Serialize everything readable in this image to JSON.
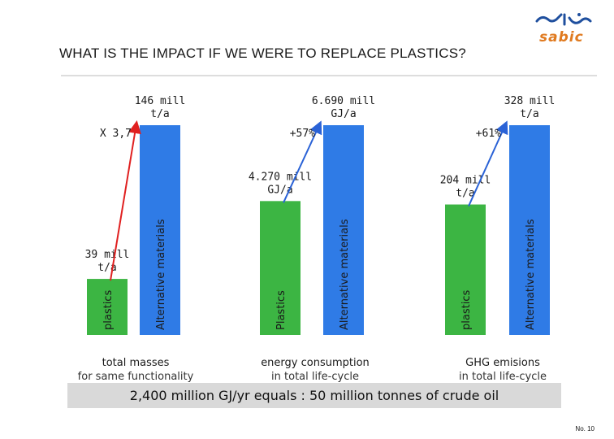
{
  "header": {
    "title": "WHAT IS THE IMPACT IF WE WERE TO REPLACE PLASTICS?",
    "logo_text": "sabic"
  },
  "chart_data": {
    "type": "bar",
    "groups": [
      {
        "category_line1": "total masses",
        "category_line2": "for same functionality",
        "series": [
          {
            "name": "plastics",
            "value": 39,
            "value_label": [
              "39 mill",
              "t/a"
            ]
          },
          {
            "name": "Alternative materials",
            "value": 146,
            "value_label": [
              "146 mill",
              "t/a"
            ]
          }
        ],
        "annotation": "X 3,7"
      },
      {
        "category_line1": "energy consumption",
        "category_line2": "in total life-cycle",
        "series": [
          {
            "name": "Plastics",
            "value": 4270,
            "value_label": [
              "4.270 mill",
              "GJ/a"
            ]
          },
          {
            "name": "Alternative materials",
            "value": 6690,
            "value_label": [
              "6.690 mill",
              "GJ/a"
            ]
          }
        ],
        "annotation": "+57%"
      },
      {
        "category_line1": "GHG emisions",
        "category_line2": "in total life-cycle",
        "series": [
          {
            "name": "plastics",
            "value": 204,
            "value_label": [
              "204 mill",
              "t/a"
            ]
          },
          {
            "name": "Alternative materials",
            "value": 328,
            "value_label": [
              "328 mill",
              "t/a"
            ]
          }
        ],
        "annotation": "+61%"
      }
    ],
    "colors": {
      "plastics": "#3cb543",
      "alternative": "#2f7be6",
      "arrow_red": "#e02020",
      "arrow_blue": "#2a62d6"
    }
  },
  "footer": {
    "text": "2,400 million GJ/yr equals : 50 million tonnes of crude oil",
    "page_number": "No. 10"
  }
}
